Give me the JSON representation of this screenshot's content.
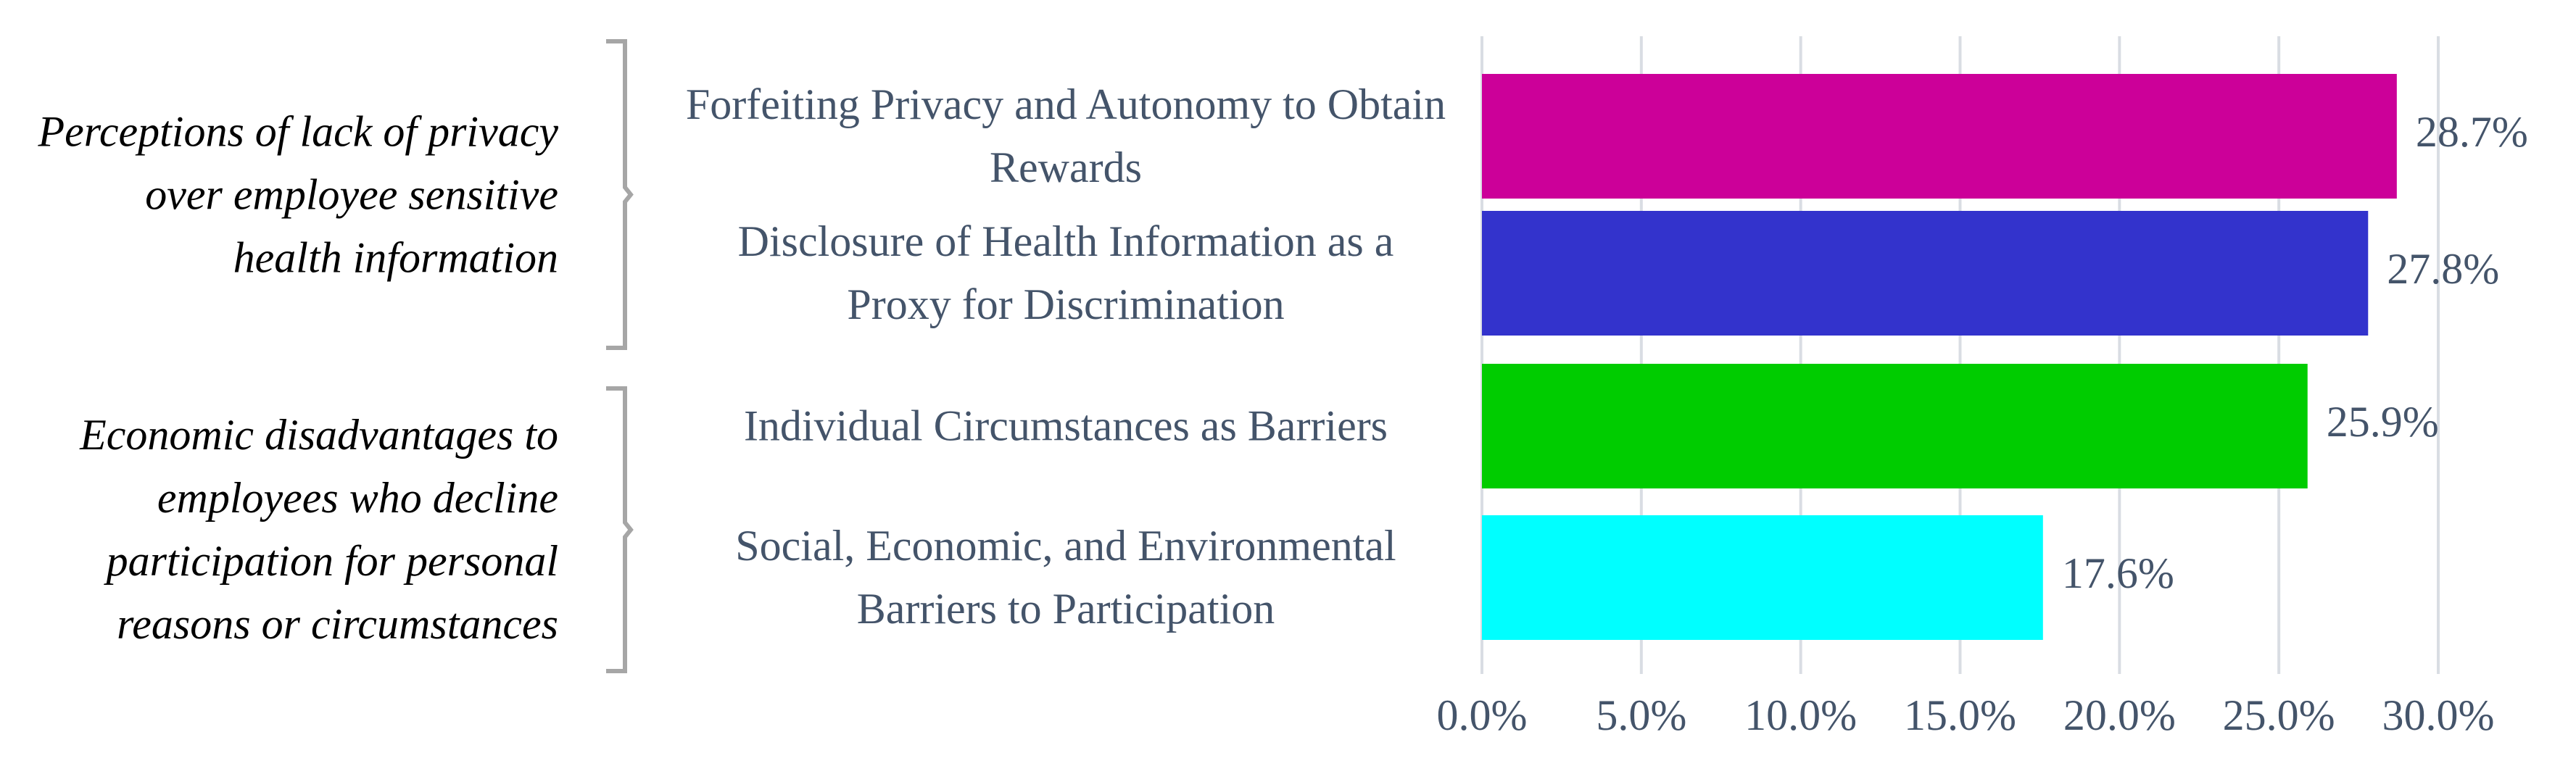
{
  "chart_data": {
    "type": "barh",
    "categories": [
      "Forfeiting Privacy and Autonomy to Obtain Rewards",
      "Disclosure of Health Information as a Proxy for Discrimination",
      "Individual Circumstances as Barriers",
      "Social, Economic, and Environmental Barriers to Participation"
    ],
    "values": [
      28.7,
      27.8,
      25.9,
      17.6
    ],
    "value_labels": [
      "28.7%",
      "27.8%",
      "25.9%",
      "17.6%"
    ],
    "colors": [
      "#cc0099",
      "#3333cc",
      "#00cc00",
      "#00ffff"
    ],
    "annotations": [
      "Perceptions of lack of privacy over employee sensitive health information",
      "Economic disadvantages to employees who decline participation for personal reasons or circumstances"
    ],
    "xlim": [
      0,
      30
    ],
    "xticks": [
      {
        "value": 0,
        "label": "0.0%"
      },
      {
        "value": 5,
        "label": "5.0%"
      },
      {
        "value": 10,
        "label": "10.0%"
      },
      {
        "value": 15,
        "label": "15.0%"
      },
      {
        "value": 20,
        "label": "20.0%"
      },
      {
        "value": 25,
        "label": "25.0%"
      },
      {
        "value": 30,
        "label": "30.0%"
      }
    ],
    "grid": true
  }
}
